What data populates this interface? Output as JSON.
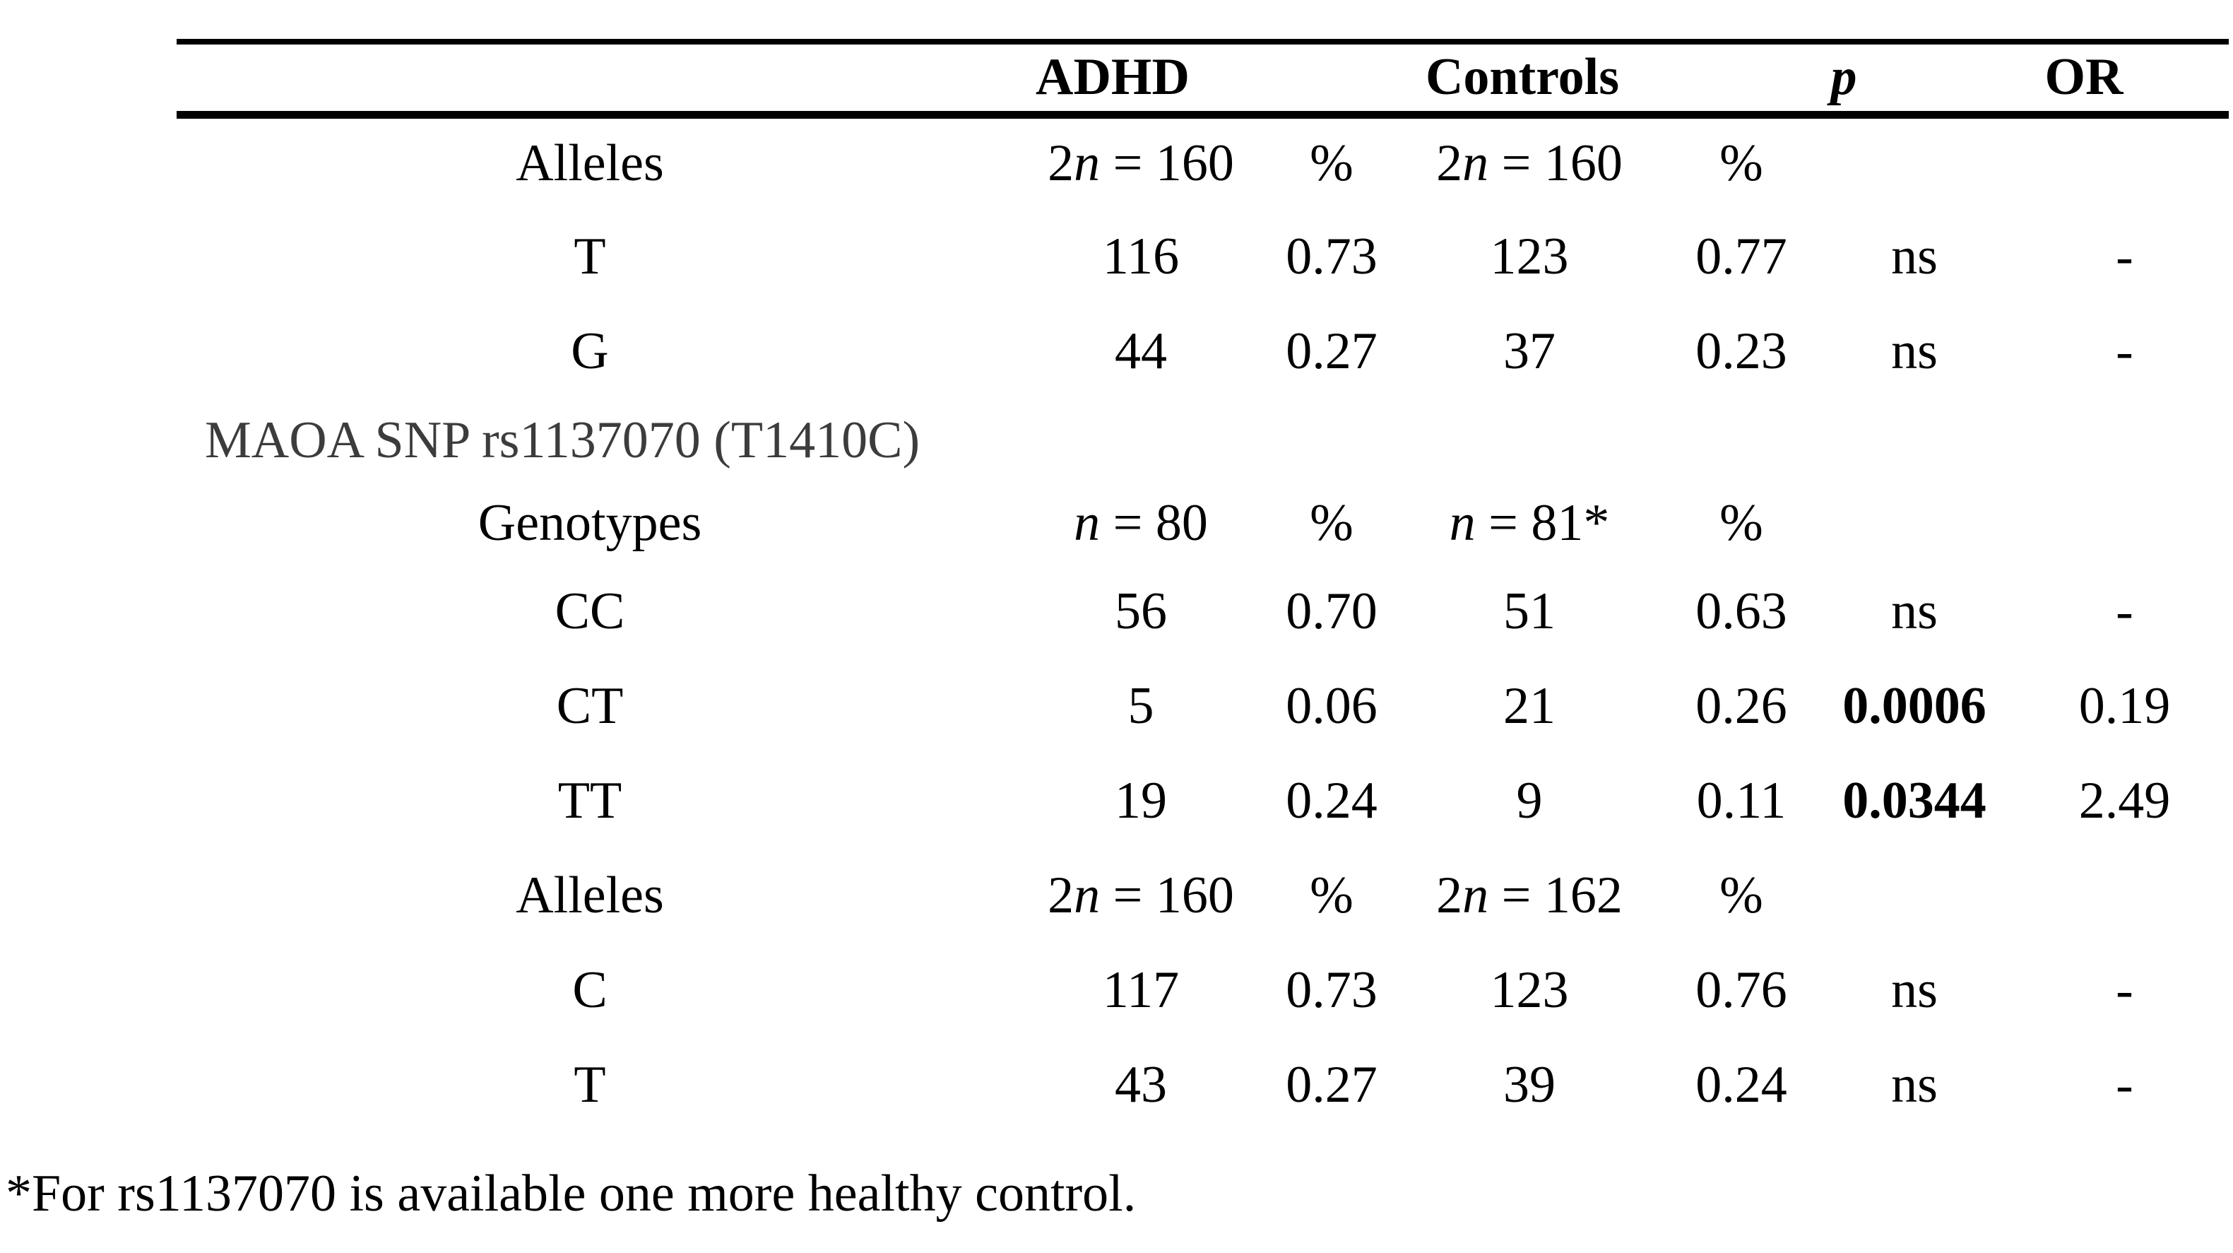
{
  "table": {
    "header": {
      "adhd": "ADHD",
      "controls": "Controls",
      "p": "p",
      "or": "OR"
    },
    "rows": [
      {
        "type": "subheader",
        "label": "Alleles",
        "cells": [
          {
            "pre": "2",
            "it": "n",
            "post": " = 160"
          },
          "%",
          {
            "pre": "2",
            "it": "n",
            "post": " = 160"
          },
          "%",
          "",
          ""
        ]
      },
      {
        "type": "data",
        "label": "T",
        "cells": [
          "116",
          "0.73",
          "123",
          "0.77",
          "ns",
          "-"
        ]
      },
      {
        "type": "data",
        "label": "G",
        "cells": [
          "44",
          "0.27",
          "37",
          "0.23",
          "ns",
          "-"
        ]
      },
      {
        "type": "section",
        "label": "MAOA SNP rs1137070 (T1410C)"
      },
      {
        "type": "subheader",
        "label": "Genotypes",
        "cells": [
          {
            "it": "n",
            "post": " = 80"
          },
          "%",
          {
            "it": "n",
            "post": " = 81*"
          },
          "%",
          "",
          ""
        ]
      },
      {
        "type": "data",
        "label": "CC",
        "cells": [
          "56",
          "0.70",
          "51",
          "0.63",
          "ns",
          "-"
        ]
      },
      {
        "type": "data",
        "label": "CT",
        "cells": [
          "5",
          "0.06",
          "21",
          "0.26",
          {
            "bold": true,
            "text": "0.0006"
          },
          "0.19"
        ]
      },
      {
        "type": "data",
        "label": "TT",
        "cells": [
          "19",
          "0.24",
          "9",
          "0.11",
          {
            "bold": true,
            "text": "0.0344"
          },
          "2.49"
        ]
      },
      {
        "type": "subheader",
        "label": "Alleles",
        "cells": [
          {
            "pre": "2",
            "it": "n",
            "post": " = 160"
          },
          "%",
          {
            "pre": "2",
            "it": "n",
            "post": " = 162"
          },
          "%",
          "",
          ""
        ]
      },
      {
        "type": "data",
        "label": "C",
        "cells": [
          "117",
          "0.73",
          "123",
          "0.76",
          "ns",
          "-"
        ]
      },
      {
        "type": "data",
        "label": "T",
        "cells": [
          "43",
          "0.27",
          "39",
          "0.24",
          "ns",
          "-"
        ]
      }
    ],
    "footnote": "*For rs1137070 is available one more healthy control."
  },
  "colors": {
    "background": "#ffffff",
    "text": "#000000",
    "section_label": "#3c3c3c",
    "rule": "#000000"
  }
}
